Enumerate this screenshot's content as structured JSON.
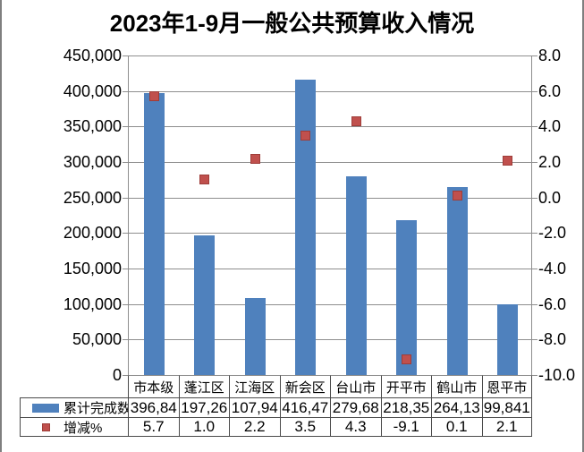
{
  "title": "2023年1-9月一般公共预算收入情况",
  "colors": {
    "bar": "#4f81bd",
    "marker": "#c0504d",
    "marker_border": "#9e3d39",
    "gridline": "#8e8e8e",
    "axis": "#8e8e8e",
    "table_border": "#4a4a4a",
    "frame": "#7f7f7f",
    "text": "#000000"
  },
  "chart_data": {
    "type": "bar",
    "title": "2023年1-9月一般公共预算收入情况",
    "categories": [
      "市本级",
      "蓬江区",
      "江海区",
      "新会区",
      "台山市",
      "开平市",
      "鹤山市",
      "恩平市"
    ],
    "series": [
      {
        "name": "累计完成数",
        "type": "bar",
        "axis": "left",
        "swatch": "bar",
        "values": [
          396840,
          197260,
          107940,
          416470,
          279680,
          218350,
          264130,
          99841
        ],
        "display_values": [
          "396,84",
          "197,26",
          "107,94",
          "416,47",
          "279,68",
          "218,35",
          "264,13",
          "99,841"
        ]
      },
      {
        "name": "增减%",
        "type": "scatter",
        "axis": "right",
        "swatch": "square",
        "values": [
          5.7,
          1.0,
          2.2,
          3.5,
          4.3,
          -9.1,
          0.1,
          2.1
        ],
        "display_values": [
          "5.7",
          "1.0",
          "2.2",
          "3.5",
          "4.3",
          "-9.1",
          "0.1",
          "2.1"
        ]
      }
    ],
    "left_axis": {
      "min": 0,
      "max": 450000,
      "step": 50000,
      "tick_labels": [
        "0",
        "50,000",
        "100,000",
        "150,000",
        "200,000",
        "250,000",
        "300,000",
        "350,000",
        "400,000",
        "450,000"
      ]
    },
    "right_axis": {
      "min": -10,
      "max": 8,
      "step": 2,
      "tick_labels": [
        "-10.0",
        "-8.0",
        "-6.0",
        "-4.0",
        "-2.0",
        "0.0",
        "2.0",
        "4.0",
        "6.0",
        "8.0"
      ]
    },
    "grid": true,
    "legend_position": "table-left",
    "table_shown": true
  }
}
